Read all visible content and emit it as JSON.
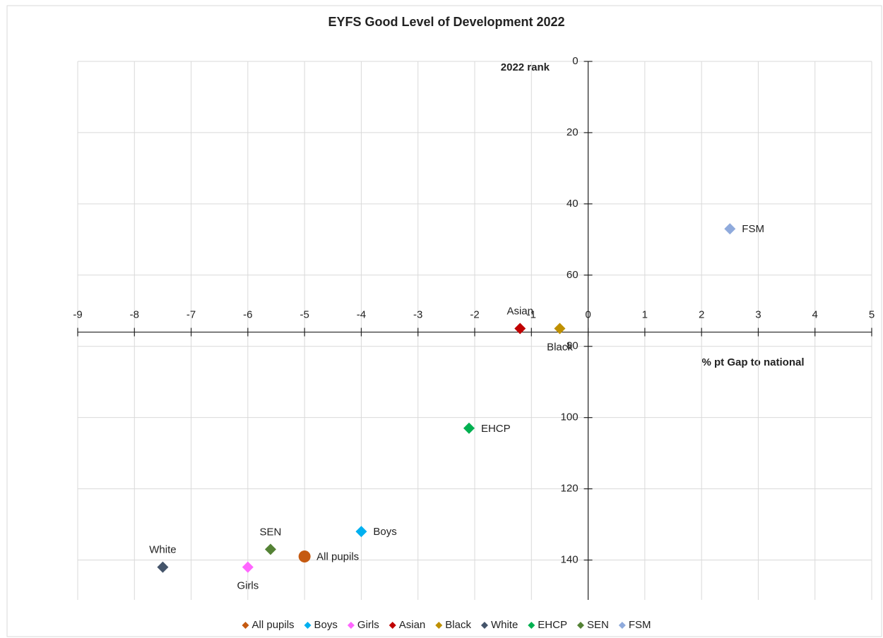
{
  "chart_data": {
    "type": "scatter",
    "title": "EYFS Good Level of Development 2022",
    "x_label": "% pt Gap to national",
    "y_label": "2022 rank",
    "xlim": [
      -9,
      5
    ],
    "xticks": [
      -9,
      -8,
      -7,
      -6,
      -5,
      -4,
      -3,
      -2,
      -1,
      0,
      1,
      2,
      3,
      4,
      5
    ],
    "ylim": [
      0,
      150
    ],
    "yticks": [
      0,
      20,
      40,
      60,
      80,
      100,
      120,
      140
    ],
    "y_reversed": true,
    "x_axis_crosses_at": 76,
    "grid": true,
    "legend": "bottom",
    "series": [
      {
        "name": "All pupils",
        "color": "#c55a11",
        "marker": "circle",
        "x": [
          -5
        ],
        "values": [
          139
        ]
      },
      {
        "name": "Boys",
        "color": "#00b0f0",
        "marker": "diamond",
        "x": [
          -4
        ],
        "values": [
          132
        ]
      },
      {
        "name": "Girls",
        "color": "#ff66ff",
        "marker": "diamond",
        "x": [
          -6
        ],
        "values": [
          142
        ]
      },
      {
        "name": "Asian",
        "color": "#c00000",
        "marker": "diamond",
        "x": [
          -1.2
        ],
        "values": [
          75
        ]
      },
      {
        "name": "Black",
        "color": "#bf9000",
        "marker": "diamond",
        "x": [
          -0.5
        ],
        "values": [
          75
        ]
      },
      {
        "name": "White",
        "color": "#44546a",
        "marker": "diamond",
        "x": [
          -7.5
        ],
        "values": [
          142
        ]
      },
      {
        "name": "EHCP",
        "color": "#00b050",
        "marker": "diamond",
        "x": [
          -2.1
        ],
        "values": [
          103
        ]
      },
      {
        "name": "SEN",
        "color": "#548235",
        "marker": "diamond",
        "x": [
          -5.6
        ],
        "values": [
          137
        ]
      },
      {
        "name": "FSM",
        "color": "#8faadc",
        "marker": "diamond",
        "x": [
          2.5
        ],
        "values": [
          47
        ]
      }
    ]
  }
}
